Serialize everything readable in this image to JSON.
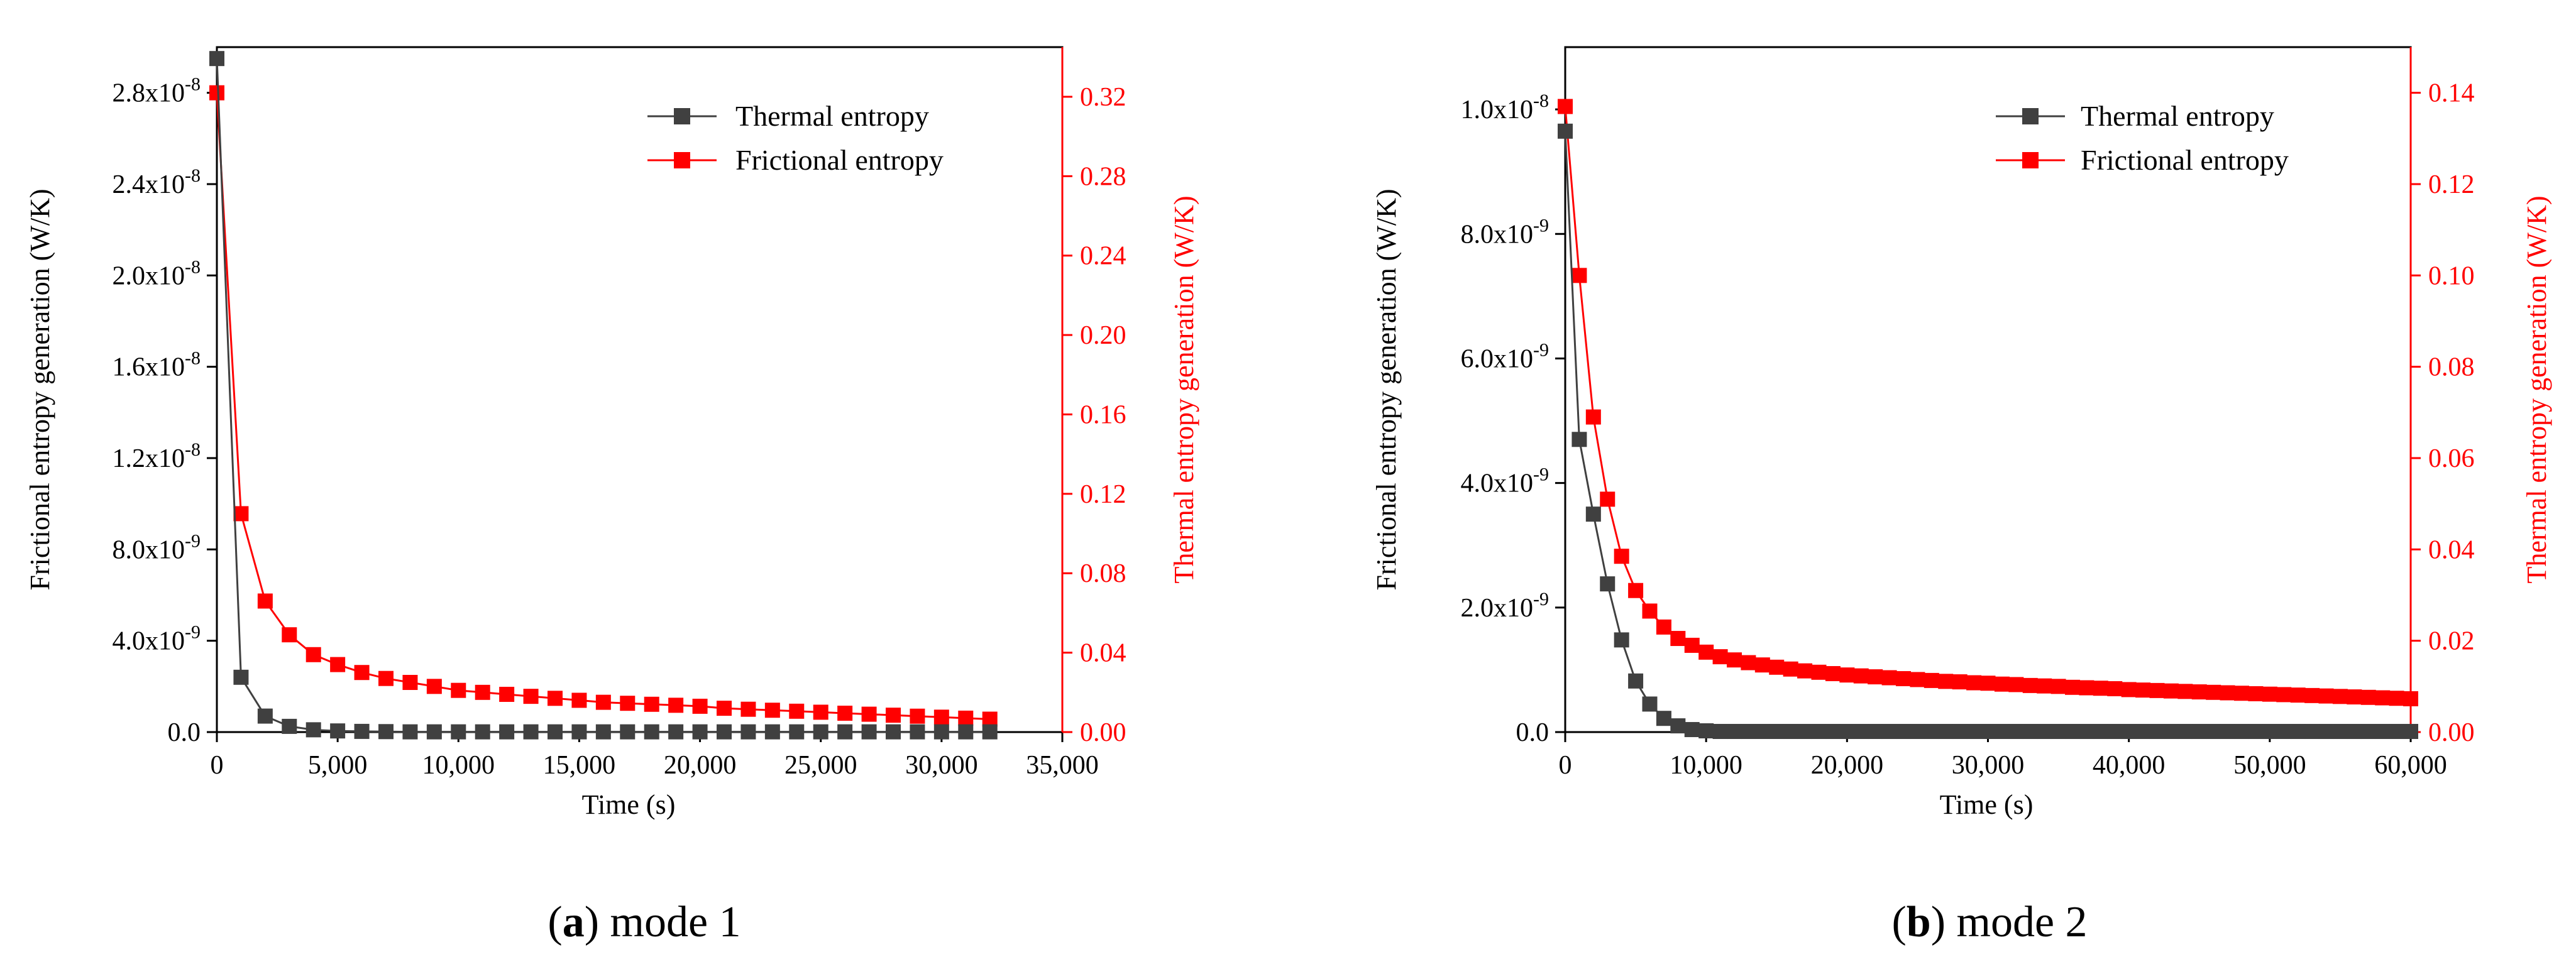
{
  "colors": {
    "thermal": "#404040",
    "frictional": "#ff0000",
    "axis": "#000000",
    "right_axis": "#ff0000"
  },
  "panels": [
    {
      "caption": {
        "letter": "a",
        "open": "(",
        "close": ")",
        "text": " mode 1"
      },
      "xlabel": "Time (s)",
      "ylabel_left": "Frictional entropy generation (W/K)",
      "ylabel_right": "Thermal entropy generation (W/K)",
      "legend": {
        "thermal": "Thermal entropy",
        "frictional": "Frictional entropy"
      }
    },
    {
      "caption": {
        "letter": "b",
        "open": "(",
        "close": ")",
        "text": " mode 2"
      },
      "xlabel": "Time (s)",
      "ylabel_left": "Frictional entropy generation (W/K)",
      "ylabel_right": "Thermal entropy generation (W/K)",
      "legend": {
        "thermal": "Thermal entropy",
        "frictional": "Frictional entropy"
      }
    }
  ],
  "chart_data": [
    {
      "type": "scatter",
      "title": "(a) mode 1",
      "xlabel": "Time (s)",
      "ylabel": "Frictional entropy generation (W/K)",
      "ylabel_right": "Thermal entropy generation (W/K)",
      "xlim": [
        0,
        35000
      ],
      "ylim": [
        0,
        3e-08
      ],
      "ylim_right": [
        0,
        0.345
      ],
      "x_ticks": [
        0,
        5000,
        10000,
        15000,
        20000,
        25000,
        30000,
        35000
      ],
      "x_tick_labels": [
        "0",
        "5,000",
        "10,000",
        "15,000",
        "20,000",
        "25,000",
        "30,000",
        "35,000"
      ],
      "y_ticks": [
        0,
        4e-09,
        8e-09,
        1.2e-08,
        1.6e-08,
        2e-08,
        2.4e-08,
        2.8e-08
      ],
      "y_tick_labels": [
        {
          "m": "0.0",
          "e": ""
        },
        {
          "m": "4.0x10",
          "e": "-9"
        },
        {
          "m": "8.0x10",
          "e": "-9"
        },
        {
          "m": "1.2x10",
          "e": "-8"
        },
        {
          "m": "1.6x10",
          "e": "-8"
        },
        {
          "m": "2.0x10",
          "e": "-8"
        },
        {
          "m": "2.4x10",
          "e": "-8"
        },
        {
          "m": "2.8x10",
          "e": "-8"
        }
      ],
      "y_right_ticks": [
        0,
        0.04,
        0.08,
        0.12,
        0.16,
        0.2,
        0.24,
        0.28,
        0.32
      ],
      "y_right_tick_labels": [
        "0.00",
        "0.04",
        "0.08",
        "0.12",
        "0.16",
        "0.20",
        "0.24",
        "0.28",
        "0.32"
      ],
      "legend_position": "top-right",
      "series": [
        {
          "name": "Thermal entropy",
          "axis": "left",
          "x": [
            0,
            1000,
            2000,
            3000,
            4000,
            5000,
            6000,
            7000,
            8000,
            9000,
            10000,
            11000,
            12000,
            13000,
            14000,
            15000,
            16000,
            17000,
            18000,
            19000,
            20000,
            21000,
            22000,
            23000,
            24000,
            25000,
            26000,
            27000,
            28000,
            29000,
            30000,
            31000,
            32000
          ],
          "y": [
            2.95e-08,
            2.4e-09,
            7e-10,
            2.5e-10,
            1e-10,
            5e-11,
            3e-11,
            2e-11,
            1e-11,
            1e-11,
            1e-11,
            1e-11,
            1e-11,
            1e-11,
            1e-11,
            1e-11,
            1e-11,
            1e-11,
            1e-11,
            1e-11,
            1e-11,
            1e-11,
            1e-11,
            1e-11,
            1e-11,
            1e-11,
            1e-11,
            1e-11,
            1e-11,
            1e-11,
            1e-11,
            1e-11,
            1e-11
          ]
        },
        {
          "name": "Frictional entropy",
          "axis": "right",
          "x": [
            0,
            1000,
            2000,
            3000,
            4000,
            5000,
            6000,
            7000,
            8000,
            9000,
            10000,
            11000,
            12000,
            13000,
            14000,
            15000,
            16000,
            17000,
            18000,
            19000,
            20000,
            21000,
            22000,
            23000,
            24000,
            25000,
            26000,
            27000,
            28000,
            29000,
            30000,
            31000,
            32000
          ],
          "y": [
            0.322,
            0.11,
            0.066,
            0.049,
            0.039,
            0.034,
            0.03,
            0.027,
            0.025,
            0.023,
            0.021,
            0.02,
            0.019,
            0.018,
            0.017,
            0.016,
            0.015,
            0.0145,
            0.014,
            0.0135,
            0.013,
            0.012,
            0.0115,
            0.011,
            0.0105,
            0.01,
            0.0095,
            0.009,
            0.0085,
            0.008,
            0.0075,
            0.007,
            0.0065
          ]
        }
      ]
    },
    {
      "type": "scatter",
      "title": "(b) mode 2",
      "xlabel": "Time (s)",
      "ylabel": "Frictional entropy generation (W/K)",
      "ylabel_right": "Thermal entropy generation (W/K)",
      "xlim": [
        0,
        60000
      ],
      "ylim": [
        0,
        1.1e-08
      ],
      "ylim_right": [
        0,
        0.15
      ],
      "x_ticks": [
        0,
        10000,
        20000,
        30000,
        40000,
        50000,
        60000
      ],
      "x_tick_labels": [
        "0",
        "10,000",
        "20,000",
        "30,000",
        "40,000",
        "50,000",
        "60,000"
      ],
      "y_ticks": [
        0,
        2e-09,
        4e-09,
        6e-09,
        8e-09,
        1e-08
      ],
      "y_tick_labels": [
        {
          "m": "0.0",
          "e": ""
        },
        {
          "m": "2.0x10",
          "e": "-9"
        },
        {
          "m": "4.0x10",
          "e": "-9"
        },
        {
          "m": "6.0x10",
          "e": "-9"
        },
        {
          "m": "8.0x10",
          "e": "-9"
        },
        {
          "m": "1.0x10",
          "e": "-8"
        }
      ],
      "y_right_ticks": [
        0,
        0.02,
        0.04,
        0.06,
        0.08,
        0.1,
        0.12,
        0.14
      ],
      "y_right_tick_labels": [
        "0.00",
        "0.02",
        "0.04",
        "0.06",
        "0.08",
        "0.10",
        "0.12",
        "0.14"
      ],
      "legend_position": "top-right",
      "series": [
        {
          "name": "Thermal entropy",
          "axis": "left",
          "x": [
            0,
            1000,
            2000,
            3000,
            4000,
            5000,
            6000,
            7000,
            8000,
            9000,
            10000,
            11000,
            12000,
            13000,
            14000,
            15000,
            16000,
            17000,
            18000,
            19000,
            20000,
            21000,
            22000,
            23000,
            24000,
            25000,
            26000,
            27000,
            28000,
            29000,
            30000,
            31000,
            32000,
            33000,
            34000,
            35000,
            36000,
            37000,
            38000,
            39000,
            40000,
            41000,
            42000,
            43000,
            44000,
            45000,
            46000,
            47000,
            48000,
            49000,
            50000,
            51000,
            52000,
            53000,
            54000,
            55000,
            56000,
            57000,
            58000,
            59000,
            60000
          ],
          "y": [
            9.65e-09,
            4.7e-09,
            3.5e-09,
            2.38e-09,
            1.48e-09,
            8.2e-10,
            4.5e-10,
            2.2e-10,
            1e-10,
            4e-11,
            2e-11,
            1e-11,
            1e-11,
            1e-11,
            1e-11,
            1e-11,
            1e-11,
            1e-11,
            1e-11,
            1e-11,
            1e-11,
            1e-11,
            1e-11,
            1e-11,
            1e-11,
            1e-11,
            1e-11,
            1e-11,
            1e-11,
            1e-11,
            1e-11,
            1e-11,
            1e-11,
            1e-11,
            1e-11,
            1e-11,
            1e-11,
            1e-11,
            1e-11,
            1e-11,
            1e-11,
            1e-11,
            1e-11,
            1e-11,
            1e-11,
            1e-11,
            1e-11,
            1e-11,
            1e-11,
            1e-11,
            1e-11,
            1e-11,
            1e-11,
            1e-11,
            1e-11,
            1e-11,
            1e-11,
            1e-11,
            1e-11,
            1e-11,
            1e-11
          ]
        },
        {
          "name": "Frictional entropy",
          "axis": "right",
          "x": [
            0,
            1000,
            2000,
            3000,
            4000,
            5000,
            6000,
            7000,
            8000,
            9000,
            10000,
            11000,
            12000,
            13000,
            14000,
            15000,
            16000,
            17000,
            18000,
            19000,
            20000,
            21000,
            22000,
            23000,
            24000,
            25000,
            26000,
            27000,
            28000,
            29000,
            30000,
            31000,
            32000,
            33000,
            34000,
            35000,
            36000,
            37000,
            38000,
            39000,
            40000,
            41000,
            42000,
            43000,
            44000,
            45000,
            46000,
            47000,
            48000,
            49000,
            50000,
            51000,
            52000,
            53000,
            54000,
            55000,
            56000,
            57000,
            58000,
            59000,
            60000
          ],
          "y": [
            0.137,
            0.1,
            0.069,
            0.051,
            0.0385,
            0.031,
            0.0265,
            0.023,
            0.0205,
            0.019,
            0.0175,
            0.0165,
            0.0158,
            0.0152,
            0.0147,
            0.0142,
            0.0138,
            0.0134,
            0.0131,
            0.0128,
            0.0125,
            0.0123,
            0.0121,
            0.0119,
            0.0117,
            0.0115,
            0.0113,
            0.0111,
            0.011,
            0.0108,
            0.0107,
            0.0105,
            0.0104,
            0.0102,
            0.0101,
            0.01,
            0.0098,
            0.0097,
            0.0096,
            0.0095,
            0.0093,
            0.0092,
            0.0091,
            0.009,
            0.0089,
            0.0088,
            0.0087,
            0.0086,
            0.0085,
            0.0084,
            0.0083,
            0.0082,
            0.0081,
            0.008,
            0.0079,
            0.0078,
            0.0077,
            0.0076,
            0.0075,
            0.0074,
            0.0073
          ]
        }
      ]
    }
  ]
}
